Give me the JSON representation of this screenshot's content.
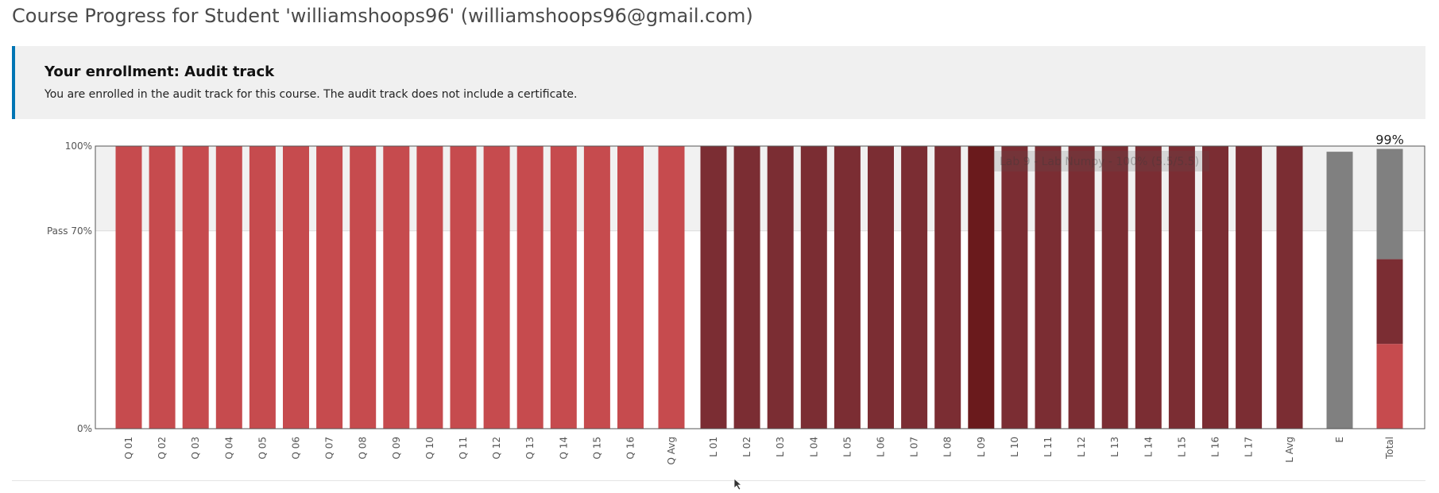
{
  "page": {
    "title": "Course Progress for Student 'williamshoops96' (williamshoops96@gmail.com)"
  },
  "enrollment": {
    "title": "Your enrollment: Audit track",
    "message": "You are enrolled in the audit track for this course. The audit track does not include a certificate."
  },
  "colors": {
    "banner_accent": "#0075b4",
    "quiz": "#c64b4e",
    "lab": "#7b2d33",
    "lab_hover": "#6a1a1c",
    "exam": "#808080",
    "pass_zone": "#f1f1f1"
  },
  "chart_data": {
    "type": "bar",
    "ylim": [
      0,
      100
    ],
    "yticks": [
      {
        "value": 100,
        "label": "100%"
      },
      {
        "value": 70,
        "label": "Pass 70%"
      },
      {
        "value": 0,
        "label": "0%"
      }
    ],
    "pass_threshold": 70,
    "categories": [
      "Q 01",
      "Q 02",
      "Q 03",
      "Q 04",
      "Q 05",
      "Q 06",
      "Q 07",
      "Q 08",
      "Q 09",
      "Q 10",
      "Q 11",
      "Q 12",
      "Q 13",
      "Q 14",
      "Q 15",
      "Q 16",
      "Q Avg",
      "L 01",
      "L 02",
      "L 03",
      "L 04",
      "L 05",
      "L 06",
      "L 07",
      "L 08",
      "L 09",
      "L 10",
      "L 11",
      "L 12",
      "L 13",
      "L 14",
      "L 15",
      "L 16",
      "L 17",
      "L Avg",
      "E",
      "Total"
    ],
    "values": [
      100,
      100,
      100,
      100,
      100,
      100,
      100,
      100,
      100,
      100,
      100,
      100,
      100,
      100,
      100,
      100,
      100,
      100,
      100,
      100,
      100,
      100,
      100,
      100,
      100,
      100,
      100,
      100,
      100,
      100,
      100,
      100,
      100,
      100,
      100,
      98,
      99
    ],
    "groups": [
      "quiz",
      "quiz",
      "quiz",
      "quiz",
      "quiz",
      "quiz",
      "quiz",
      "quiz",
      "quiz",
      "quiz",
      "quiz",
      "quiz",
      "quiz",
      "quiz",
      "quiz",
      "quiz",
      "quiz",
      "lab",
      "lab",
      "lab",
      "lab",
      "lab",
      "lab",
      "lab",
      "lab",
      "lab",
      "lab",
      "lab",
      "lab",
      "lab",
      "lab",
      "lab",
      "lab",
      "lab",
      "lab",
      "exam",
      "total"
    ],
    "total": {
      "label": "99%",
      "segments": [
        {
          "group": "quiz",
          "value": 30
        },
        {
          "group": "lab",
          "value": 30
        },
        {
          "group": "exam",
          "value": 39
        }
      ]
    },
    "highlighted_category": "L 09",
    "tooltip": "Lab 9 - Lab Numpy - 100% (5.5/5.5)"
  }
}
